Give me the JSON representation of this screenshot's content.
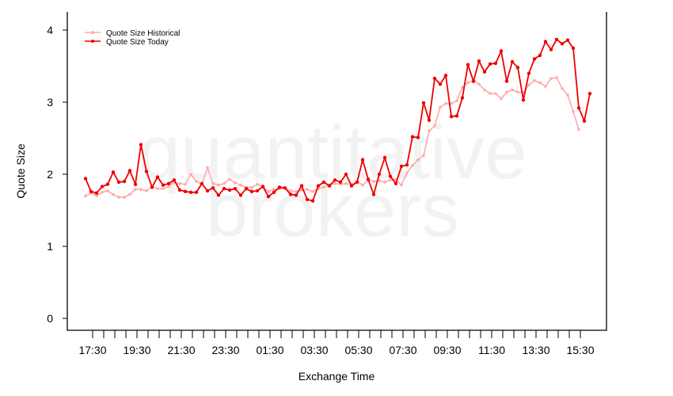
{
  "watermark": {
    "line1": "quantitative",
    "line2": "brokers"
  },
  "chart_data": {
    "type": "line",
    "xlabel": "Exchange Time",
    "ylabel": "Quote Size",
    "ylim": [
      0,
      4.2
    ],
    "yticks": [
      0,
      1,
      2,
      3,
      4
    ],
    "xtick_labels": [
      "17:30",
      "19:30",
      "21:30",
      "23:30",
      "01:30",
      "03:30",
      "05:30",
      "07:30",
      "09:30",
      "11:30",
      "13:30",
      "15:30"
    ],
    "grid": false,
    "legend_position": "top-left",
    "series": [
      {
        "name": "Quote Size Historical",
        "color": "#ffaaaa",
        "values": [
          1.7,
          1.74,
          1.7,
          1.75,
          1.77,
          1.72,
          1.68,
          1.68,
          1.72,
          1.79,
          1.79,
          1.77,
          1.83,
          1.8,
          1.8,
          1.83,
          1.89,
          1.87,
          1.86,
          2.0,
          1.9,
          1.86,
          2.09,
          1.87,
          1.85,
          1.87,
          1.93,
          1.88,
          1.85,
          1.82,
          1.82,
          1.86,
          1.83,
          1.76,
          1.79,
          1.8,
          1.81,
          1.77,
          1.76,
          1.78,
          1.79,
          1.76,
          1.8,
          1.82,
          1.85,
          1.87,
          1.86,
          1.87,
          1.86,
          1.9,
          1.85,
          1.92,
          1.9,
          1.91,
          1.89,
          1.92,
          1.93,
          1.85,
          2.02,
          2.12,
          2.2,
          2.26,
          2.6,
          2.67,
          2.93,
          2.98,
          2.98,
          3.02,
          3.21,
          3.27,
          3.3,
          3.25,
          3.17,
          3.12,
          3.12,
          3.05,
          3.14,
          3.17,
          3.14,
          3.13,
          3.24,
          3.3,
          3.27,
          3.22,
          3.33,
          3.34,
          3.19,
          3.1,
          2.87,
          2.62
        ]
      },
      {
        "name": "Quote Size Today",
        "color": "#ee0000",
        "values": [
          1.94,
          1.76,
          1.74,
          1.83,
          1.86,
          2.03,
          1.89,
          1.9,
          2.05,
          1.86,
          2.41,
          2.04,
          1.82,
          1.96,
          1.85,
          1.87,
          1.92,
          1.78,
          1.76,
          1.75,
          1.75,
          1.87,
          1.77,
          1.81,
          1.71,
          1.8,
          1.78,
          1.8,
          1.71,
          1.8,
          1.76,
          1.77,
          1.83,
          1.69,
          1.75,
          1.82,
          1.81,
          1.72,
          1.71,
          1.84,
          1.65,
          1.63,
          1.84,
          1.89,
          1.84,
          1.92,
          1.89,
          2.0,
          1.84,
          1.89,
          2.2,
          1.93,
          1.72,
          2.0,
          2.23,
          1.97,
          1.87,
          2.11,
          2.13,
          2.52,
          2.51,
          2.99,
          2.75,
          3.33,
          3.25,
          3.37,
          2.8,
          2.81,
          3.06,
          3.52,
          3.29,
          3.57,
          3.42,
          3.53,
          3.54,
          3.71,
          3.29,
          3.56,
          3.48,
          3.03,
          3.4,
          3.6,
          3.65,
          3.84,
          3.73,
          3.87,
          3.81,
          3.86,
          3.75,
          2.92,
          2.74,
          3.12
        ]
      }
    ]
  }
}
